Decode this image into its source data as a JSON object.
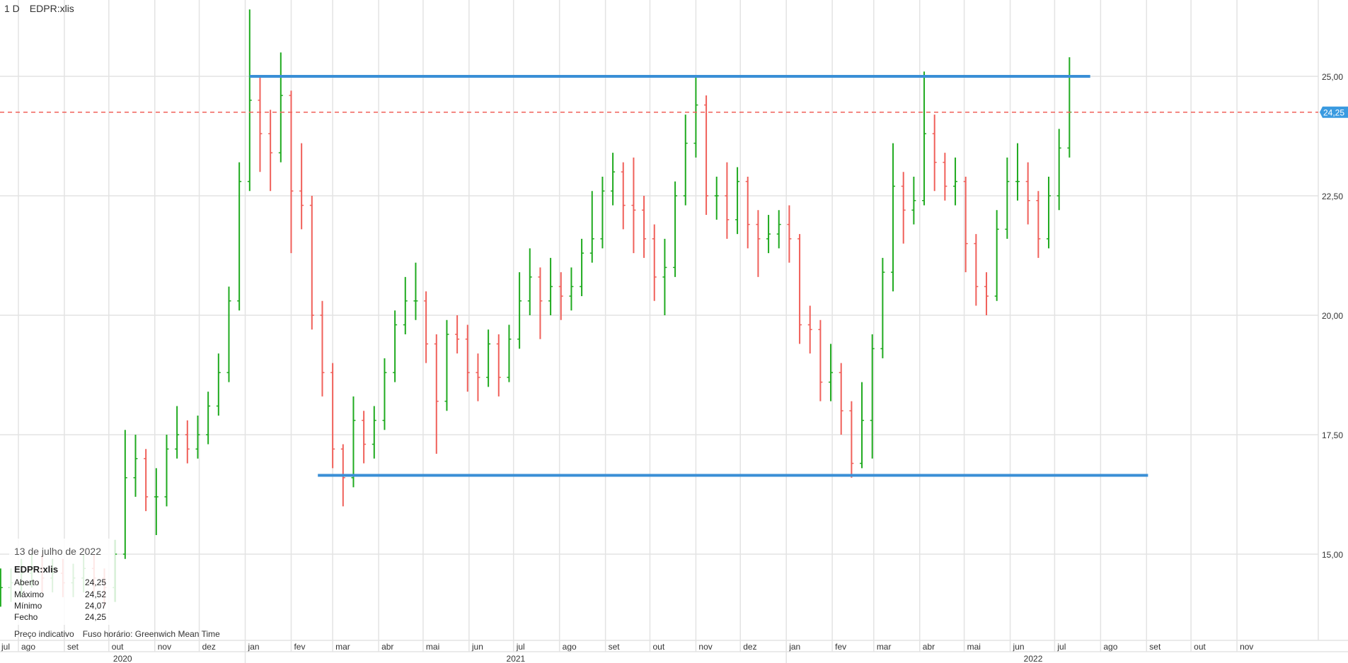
{
  "header": {
    "interval": "1 D",
    "symbol": "EDPR:xlis"
  },
  "info_box": {
    "date": "13 de julho de 2022",
    "symbol": "EDPR:xlis",
    "rows": [
      {
        "label": "Aberto",
        "value": "24,25"
      },
      {
        "label": "Máximo",
        "value": "24,52"
      },
      {
        "label": "Mínimo",
        "value": "24,07"
      },
      {
        "label": "Fecho",
        "value": "24,25"
      }
    ]
  },
  "footer": {
    "note": "Preço indicativo",
    "timezone": "Fuso horário: Greenwich Mean Time"
  },
  "colors": {
    "up": "#1faa1f",
    "down": "#f0605a",
    "trendline": "#3a8fd6",
    "last_price": "#f0605a",
    "last_price_label_bg": "#3a9ae0",
    "grid": "#e3e3e3"
  },
  "chart_data": {
    "type": "ohlc",
    "symbol": "EDPR:xlis",
    "y_ticks": [
      15,
      17.5,
      20,
      22.5,
      25
    ],
    "y_tick_labels": [
      "15,00",
      "17,50",
      "20,00",
      "22,50",
      "25,00"
    ],
    "ylim": [
      12.7,
      27.5
    ],
    "xlim": [
      "2020-07-12",
      "2022-11-30"
    ],
    "grid": true,
    "last_price": 24.25,
    "last_price_label": "24,25",
    "months": [
      {
        "date": "2020-07-01",
        "label": "jul"
      },
      {
        "date": "2020-08-01",
        "label": "ago"
      },
      {
        "date": "2020-09-01",
        "label": "set"
      },
      {
        "date": "2020-10-01",
        "label": "out"
      },
      {
        "date": "2020-11-01",
        "label": "nov"
      },
      {
        "date": "2020-12-01",
        "label": "dez"
      },
      {
        "date": "2021-01-01",
        "label": "jan"
      },
      {
        "date": "2021-02-01",
        "label": "fev"
      },
      {
        "date": "2021-03-01",
        "label": "mar"
      },
      {
        "date": "2021-04-01",
        "label": "abr"
      },
      {
        "date": "2021-05-01",
        "label": "mai"
      },
      {
        "date": "2021-06-01",
        "label": "jun"
      },
      {
        "date": "2021-07-01",
        "label": "jul"
      },
      {
        "date": "2021-08-01",
        "label": "ago"
      },
      {
        "date": "2021-09-01",
        "label": "set"
      },
      {
        "date": "2021-10-01",
        "label": "out"
      },
      {
        "date": "2021-11-01",
        "label": "nov"
      },
      {
        "date": "2021-12-01",
        "label": "dez"
      },
      {
        "date": "2022-01-01",
        "label": "jan"
      },
      {
        "date": "2022-02-01",
        "label": "fev"
      },
      {
        "date": "2022-03-01",
        "label": "mar"
      },
      {
        "date": "2022-04-01",
        "label": "abr"
      },
      {
        "date": "2022-05-01",
        "label": "mai"
      },
      {
        "date": "2022-06-01",
        "label": "jun"
      },
      {
        "date": "2022-07-01",
        "label": "jul"
      },
      {
        "date": "2022-08-01",
        "label": "ago"
      },
      {
        "date": "2022-09-01",
        "label": "set"
      },
      {
        "date": "2022-10-01",
        "label": "out"
      },
      {
        "date": "2022-11-01",
        "label": "nov"
      }
    ],
    "years": [
      {
        "label": "2020",
        "start": "2020-07-01",
        "end": "2021-01-01"
      },
      {
        "label": "2021",
        "start": "2021-01-01",
        "end": "2022-01-01"
      },
      {
        "label": "2022",
        "start": "2022-01-01",
        "end": "2022-11-30"
      }
    ],
    "trendlines": [
      {
        "name": "resistance",
        "price": 25.0,
        "from": "2021-01-04",
        "to": "2022-07-25"
      },
      {
        "name": "support",
        "price": 16.65,
        "from": "2021-02-19",
        "to": "2022-09-02"
      }
    ],
    "bars_fields": [
      "date",
      "open",
      "high",
      "low",
      "close"
    ],
    "bars": [
      [
        "2020-07-20",
        14.2,
        14.7,
        13.9,
        14.3
      ],
      [
        "2020-07-27",
        14.3,
        14.7,
        14.0,
        14.4
      ],
      [
        "2020-08-03",
        14.4,
        14.9,
        14.1,
        14.6
      ],
      [
        "2020-08-10",
        14.6,
        15.0,
        14.3,
        14.7
      ],
      [
        "2020-08-17",
        14.7,
        15.0,
        14.2,
        14.5
      ],
      [
        "2020-08-24",
        14.5,
        14.9,
        14.2,
        14.6
      ],
      [
        "2020-08-31",
        14.6,
        14.9,
        14.1,
        14.4
      ],
      [
        "2020-09-07",
        14.4,
        14.8,
        14.1,
        14.5
      ],
      [
        "2020-09-14",
        14.5,
        15.0,
        14.2,
        14.7
      ],
      [
        "2020-09-21",
        14.7,
        15.0,
        14.2,
        14.5
      ],
      [
        "2020-09-28",
        14.5,
        14.7,
        13.9,
        14.3
      ],
      [
        "2020-10-05",
        14.3,
        15.3,
        14.0,
        15.0
      ],
      [
        "2020-10-12",
        15.0,
        17.6,
        14.9,
        16.6
      ],
      [
        "2020-10-19",
        16.6,
        17.5,
        16.2,
        17.0
      ],
      [
        "2020-10-26",
        17.0,
        17.2,
        15.9,
        16.2
      ],
      [
        "2020-11-02",
        16.2,
        16.8,
        15.4,
        16.2
      ],
      [
        "2020-11-09",
        16.2,
        17.5,
        16.0,
        17.2
      ],
      [
        "2020-11-16",
        17.2,
        18.1,
        17.0,
        17.5
      ],
      [
        "2020-11-23",
        17.5,
        17.8,
        16.9,
        17.2
      ],
      [
        "2020-11-30",
        17.2,
        17.9,
        17.0,
        17.5
      ],
      [
        "2020-12-07",
        17.5,
        18.4,
        17.3,
        18.1
      ],
      [
        "2020-12-14",
        18.1,
        19.2,
        17.9,
        18.8
      ],
      [
        "2020-12-21",
        18.8,
        20.6,
        18.6,
        20.3
      ],
      [
        "2020-12-28",
        20.3,
        23.2,
        20.1,
        22.8
      ],
      [
        "2021-01-04",
        22.8,
        26.4,
        22.6,
        24.5
      ],
      [
        "2021-01-11",
        24.5,
        25.0,
        23.0,
        23.8
      ],
      [
        "2021-01-18",
        23.8,
        24.3,
        22.6,
        23.4
      ],
      [
        "2021-01-25",
        23.4,
        25.5,
        23.2,
        24.6
      ],
      [
        "2021-02-01",
        24.6,
        24.7,
        21.3,
        22.6
      ],
      [
        "2021-02-08",
        22.6,
        23.6,
        21.8,
        22.3
      ],
      [
        "2021-02-15",
        22.3,
        22.5,
        19.7,
        20.0
      ],
      [
        "2021-02-22",
        20.0,
        20.3,
        18.3,
        18.8
      ],
      [
        "2021-03-01",
        18.8,
        19.0,
        16.8,
        17.2
      ],
      [
        "2021-03-08",
        17.2,
        17.3,
        16.0,
        16.6
      ],
      [
        "2021-03-15",
        16.6,
        18.3,
        16.4,
        17.8
      ],
      [
        "2021-03-22",
        17.8,
        18.0,
        16.9,
        17.3
      ],
      [
        "2021-03-29",
        17.3,
        18.1,
        17.0,
        17.8
      ],
      [
        "2021-04-05",
        17.8,
        19.1,
        17.6,
        18.8
      ],
      [
        "2021-04-12",
        18.8,
        20.1,
        18.6,
        19.8
      ],
      [
        "2021-04-19",
        19.8,
        20.8,
        19.6,
        20.3
      ],
      [
        "2021-04-26",
        20.3,
        21.1,
        19.9,
        20.3
      ],
      [
        "2021-05-03",
        20.3,
        20.5,
        19.0,
        19.4
      ],
      [
        "2021-05-10",
        19.4,
        19.6,
        17.1,
        18.2
      ],
      [
        "2021-05-17",
        18.2,
        19.9,
        18.0,
        19.6
      ],
      [
        "2021-05-24",
        19.6,
        20.0,
        19.2,
        19.5
      ],
      [
        "2021-05-31",
        19.5,
        19.8,
        18.4,
        18.8
      ],
      [
        "2021-06-07",
        18.8,
        19.2,
        18.2,
        18.7
      ],
      [
        "2021-06-14",
        18.7,
        19.7,
        18.5,
        19.4
      ],
      [
        "2021-06-21",
        19.4,
        19.6,
        18.3,
        18.7
      ],
      [
        "2021-06-28",
        18.7,
        19.8,
        18.6,
        19.5
      ],
      [
        "2021-07-05",
        19.5,
        20.9,
        19.3,
        20.3
      ],
      [
        "2021-07-12",
        20.3,
        21.4,
        20.0,
        20.8
      ],
      [
        "2021-07-19",
        20.8,
        21.0,
        19.5,
        20.3
      ],
      [
        "2021-07-26",
        20.3,
        21.2,
        20.0,
        20.6
      ],
      [
        "2021-08-02",
        20.6,
        20.9,
        19.9,
        20.4
      ],
      [
        "2021-08-09",
        20.4,
        21.0,
        20.1,
        20.6
      ],
      [
        "2021-08-16",
        20.6,
        21.6,
        20.4,
        21.3
      ],
      [
        "2021-08-23",
        21.3,
        22.6,
        21.1,
        21.6
      ],
      [
        "2021-08-30",
        21.6,
        22.9,
        21.4,
        22.6
      ],
      [
        "2021-09-06",
        22.6,
        23.4,
        22.3,
        23.0
      ],
      [
        "2021-09-13",
        23.0,
        23.2,
        21.8,
        22.3
      ],
      [
        "2021-09-20",
        22.3,
        23.3,
        21.3,
        22.2
      ],
      [
        "2021-09-27",
        22.2,
        22.5,
        21.2,
        21.6
      ],
      [
        "2021-10-04",
        21.6,
        21.9,
        20.3,
        20.8
      ],
      [
        "2021-10-11",
        20.8,
        21.6,
        20.0,
        21.0
      ],
      [
        "2021-10-18",
        21.0,
        22.8,
        20.8,
        22.5
      ],
      [
        "2021-10-25",
        22.5,
        24.2,
        22.3,
        23.6
      ],
      [
        "2021-11-01",
        23.6,
        25.0,
        23.3,
        24.4
      ],
      [
        "2021-11-08",
        24.4,
        24.6,
        22.1,
        22.5
      ],
      [
        "2021-11-15",
        22.5,
        22.9,
        22.0,
        22.5
      ],
      [
        "2021-11-22",
        22.5,
        23.2,
        21.6,
        22.0
      ],
      [
        "2021-11-29",
        22.0,
        23.1,
        21.7,
        22.8
      ],
      [
        "2021-12-06",
        22.8,
        22.9,
        21.4,
        21.9
      ],
      [
        "2021-12-13",
        21.9,
        22.2,
        20.8,
        21.6
      ],
      [
        "2021-12-20",
        21.6,
        22.1,
        21.3,
        21.7
      ],
      [
        "2021-12-27",
        21.7,
        22.2,
        21.4,
        21.9
      ],
      [
        "2022-01-03",
        21.9,
        22.3,
        21.1,
        21.6
      ],
      [
        "2022-01-10",
        21.6,
        21.7,
        19.4,
        19.8
      ],
      [
        "2022-01-17",
        19.8,
        20.2,
        19.2,
        19.7
      ],
      [
        "2022-01-24",
        19.7,
        19.9,
        18.2,
        18.6
      ],
      [
        "2022-01-31",
        18.6,
        19.4,
        18.2,
        18.8
      ],
      [
        "2022-02-07",
        18.8,
        19.0,
        17.5,
        18.0
      ],
      [
        "2022-02-14",
        18.0,
        18.2,
        16.6,
        16.9
      ],
      [
        "2022-02-21",
        16.9,
        18.6,
        16.8,
        17.8
      ],
      [
        "2022-02-28",
        17.8,
        19.6,
        17.0,
        19.3
      ],
      [
        "2022-03-07",
        19.3,
        21.2,
        19.1,
        20.9
      ],
      [
        "2022-03-14",
        20.9,
        23.6,
        20.5,
        22.7
      ],
      [
        "2022-03-21",
        22.7,
        23.0,
        21.5,
        22.2
      ],
      [
        "2022-03-28",
        22.2,
        22.9,
        21.9,
        22.4
      ],
      [
        "2022-04-04",
        22.4,
        25.1,
        22.3,
        23.8
      ],
      [
        "2022-04-11",
        23.8,
        24.2,
        22.6,
        23.2
      ],
      [
        "2022-04-18",
        23.2,
        23.4,
        22.4,
        22.7
      ],
      [
        "2022-04-25",
        22.7,
        23.3,
        22.3,
        22.8
      ],
      [
        "2022-05-02",
        22.8,
        22.9,
        20.9,
        21.5
      ],
      [
        "2022-05-09",
        21.5,
        21.7,
        20.2,
        20.6
      ],
      [
        "2022-05-16",
        20.6,
        20.9,
        20.0,
        20.4
      ],
      [
        "2022-05-23",
        20.4,
        22.2,
        20.3,
        21.8
      ],
      [
        "2022-05-30",
        21.8,
        23.3,
        21.6,
        22.8
      ],
      [
        "2022-06-06",
        22.8,
        23.6,
        22.4,
        22.8
      ],
      [
        "2022-06-13",
        22.8,
        23.2,
        21.9,
        22.4
      ],
      [
        "2022-06-20",
        22.4,
        22.6,
        21.2,
        21.6
      ],
      [
        "2022-06-27",
        21.6,
        22.9,
        21.4,
        22.5
      ],
      [
        "2022-07-04",
        22.5,
        23.9,
        22.2,
        23.5
      ],
      [
        "2022-07-11",
        23.5,
        25.4,
        23.3,
        24.25
      ]
    ]
  }
}
